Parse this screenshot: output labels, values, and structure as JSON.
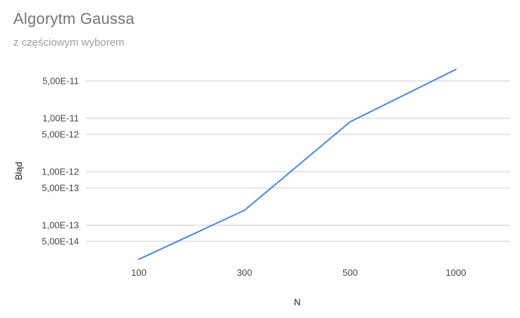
{
  "chart_data": {
    "type": "line",
    "title": "Algorytm Gaussa",
    "subtitle": "z częściowym wyborem",
    "xlabel": "N",
    "ylabel": "Błąd",
    "y_scale": "log",
    "grid": true,
    "legend": "none",
    "line_color": "#4a86e8",
    "grid_color": "#cccccc",
    "categories": [
      "100",
      "300",
      "500",
      "1000"
    ],
    "y_ticks": [
      {
        "value": 5e-11,
        "label": "5,00E-11"
      },
      {
        "value": 1e-11,
        "label": "1,00E-11"
      },
      {
        "value": 5e-12,
        "label": "5,00E-12"
      },
      {
        "value": 1e-12,
        "label": "1,00E-12"
      },
      {
        "value": 5e-13,
        "label": "5,00E-13"
      },
      {
        "value": 1e-13,
        "label": "1,00E-13"
      },
      {
        "value": 5e-14,
        "label": "5,00E-14"
      }
    ],
    "series": [
      {
        "values": [
          2.3e-14,
          1.9e-13,
          8.6e-12,
          8.2e-11
        ]
      }
    ]
  }
}
